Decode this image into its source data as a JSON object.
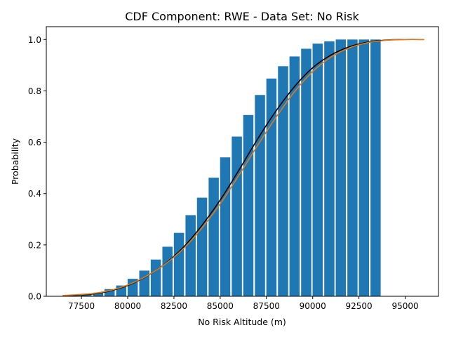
{
  "chart_data": {
    "type": "bar",
    "title": "CDF Component: RWE - Data Set: No Risk",
    "xlabel": "No Risk Altitude (m)",
    "ylabel": "Probability",
    "xlim": [
      75600,
      96800
    ],
    "ylim": [
      0,
      1.05
    ],
    "grid": false,
    "x_ticks": [
      77500,
      80000,
      82500,
      85000,
      87500,
      90000,
      92500,
      95000
    ],
    "y_ticks": [
      0.0,
      0.2,
      0.4,
      0.6,
      0.8,
      1.0
    ],
    "x_tick_labels": [
      "77500",
      "80000",
      "82500",
      "85000",
      "87500",
      "90000",
      "92500",
      "95000"
    ],
    "y_tick_labels": [
      "0.0",
      "0.2",
      "0.4",
      "0.6",
      "0.8",
      "1.0"
    ],
    "bar_width": 550,
    "bar_color": "#1f77b4",
    "bars": {
      "x": [
        76520,
        77150,
        77770,
        78400,
        79020,
        79650,
        80270,
        80900,
        81520,
        82150,
        82770,
        83400,
        84020,
        84650,
        85270,
        85900,
        86520,
        87150,
        87770,
        88400,
        89020,
        89650,
        90270,
        90900,
        91520,
        92150,
        92770,
        93400
      ],
      "values": [
        0.001,
        0.002,
        0.006,
        0.014,
        0.028,
        0.042,
        0.068,
        0.1,
        0.143,
        0.193,
        0.247,
        0.316,
        0.384,
        0.462,
        0.541,
        0.622,
        0.706,
        0.784,
        0.848,
        0.896,
        0.934,
        0.964,
        0.984,
        0.993,
        1.0,
        1.0,
        1.0,
        1.0
      ]
    },
    "series": [
      {
        "color": "#000000",
        "x": [
          76500,
          78000,
          79000,
          80000,
          81000,
          82000,
          83000,
          84000,
          85000,
          86000,
          87000,
          88000,
          89000,
          90000,
          91000,
          92000,
          93000,
          94000,
          95000,
          96000
        ],
        "values": [
          0.001,
          0.008,
          0.02,
          0.042,
          0.077,
          0.125,
          0.19,
          0.275,
          0.375,
          0.49,
          0.61,
          0.72,
          0.815,
          0.89,
          0.94,
          0.972,
          0.99,
          0.998,
          1.0,
          1.0
        ]
      },
      {
        "color": "#e07b1a",
        "x": [
          76500,
          78000,
          79000,
          80000,
          81000,
          82000,
          83000,
          84000,
          85000,
          86000,
          87000,
          88000,
          89000,
          90000,
          91000,
          92000,
          93000,
          94000,
          95000,
          96000
        ],
        "values": [
          0.003,
          0.01,
          0.022,
          0.044,
          0.078,
          0.124,
          0.185,
          0.265,
          0.36,
          0.47,
          0.585,
          0.695,
          0.795,
          0.875,
          0.932,
          0.968,
          0.988,
          0.997,
          1.0,
          1.0
        ]
      }
    ]
  }
}
